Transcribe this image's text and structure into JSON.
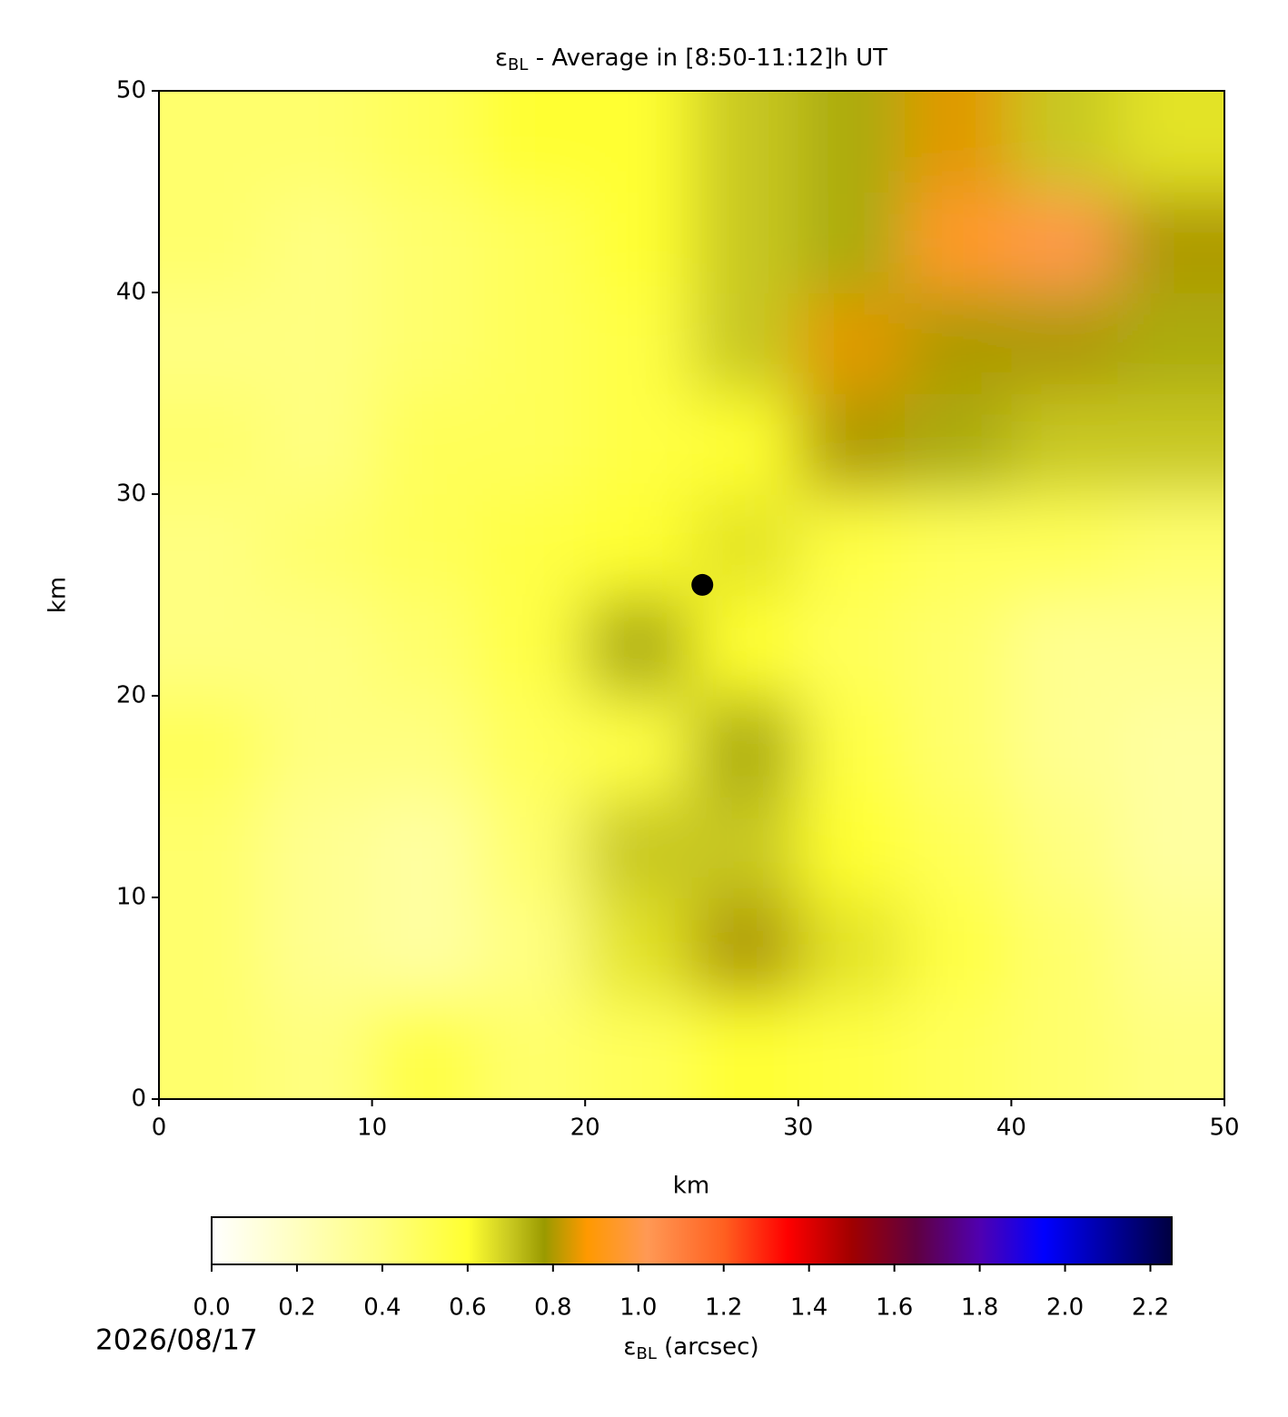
{
  "chart_data": {
    "type": "heatmap",
    "title": {
      "symbol": "ε",
      "subscript": "BL",
      "text": " - Average in [8:50-11:12]h UT"
    },
    "xlabel": "km",
    "ylabel": "km",
    "x": [
      2.5,
      7.5,
      12.5,
      17.5,
      22.5,
      27.5,
      32.5,
      37.5,
      42.5,
      47.5
    ],
    "y": [
      2.5,
      7.5,
      12.5,
      17.5,
      22.5,
      27.5,
      32.5,
      37.5,
      42.5,
      47.5
    ],
    "z": [
      [
        0.45,
        0.4,
        0.55,
        0.45,
        0.5,
        0.6,
        0.55,
        0.5,
        0.45,
        0.4
      ],
      [
        0.45,
        0.35,
        0.3,
        0.4,
        0.65,
        0.8,
        0.65,
        0.55,
        0.45,
        0.35
      ],
      [
        0.45,
        0.35,
        0.3,
        0.45,
        0.7,
        0.7,
        0.6,
        0.5,
        0.4,
        0.3
      ],
      [
        0.5,
        0.4,
        0.4,
        0.5,
        0.55,
        0.75,
        0.55,
        0.45,
        0.35,
        0.3
      ],
      [
        0.4,
        0.4,
        0.45,
        0.55,
        0.75,
        0.6,
        0.5,
        0.45,
        0.35,
        0.35
      ],
      [
        0.4,
        0.45,
        0.5,
        0.55,
        0.6,
        0.65,
        0.55,
        0.5,
        0.5,
        0.45
      ],
      [
        0.45,
        0.4,
        0.5,
        0.5,
        0.55,
        0.6,
        0.8,
        0.75,
        0.7,
        0.7
      ],
      [
        0.4,
        0.4,
        0.45,
        0.5,
        0.55,
        0.7,
        0.85,
        0.8,
        0.8,
        0.75
      ],
      [
        0.45,
        0.4,
        0.45,
        0.5,
        0.6,
        0.7,
        0.75,
        0.95,
        1.0,
        0.8
      ],
      [
        0.45,
        0.45,
        0.5,
        0.6,
        0.6,
        0.7,
        0.75,
        0.85,
        0.7,
        0.65
      ]
    ],
    "xlim": [
      0,
      50
    ],
    "ylim": [
      0,
      50
    ],
    "xticks": [
      0,
      10,
      20,
      30,
      40,
      50
    ],
    "yticks": [
      0,
      10,
      20,
      30,
      40,
      50
    ],
    "points": {
      "x": [
        25.5
      ],
      "y": [
        25.5
      ],
      "color": "#000000"
    },
    "colorbar": {
      "label": {
        "symbol": "ε",
        "subscript": "BL",
        "text": " (arcsec)"
      },
      "lim": [
        0,
        2.25
      ],
      "ticks": [
        {
          "value": 0,
          "label": "0.0"
        },
        0.2,
        0.4,
        0.6,
        0.8,
        {
          "value": 1,
          "label": "1.0"
        },
        1.2,
        1.4,
        1.6,
        1.8,
        {
          "value": 2,
          "label": "2.0"
        },
        2.2
      ],
      "colorscale": [
        [
          0,
          "#ffffff"
        ],
        [
          0.2,
          "#ffffc0"
        ],
        [
          0.4,
          "#ffff80"
        ],
        [
          0.6,
          "#ffff30"
        ],
        [
          0.7,
          "#c8c820"
        ],
        [
          0.78,
          "#9a9a00"
        ],
        [
          0.88,
          "#ff9900"
        ],
        [
          1.02,
          "#ff9955"
        ],
        [
          1.2,
          "#ff6020"
        ],
        [
          1.35,
          "#ff0000"
        ],
        [
          1.5,
          "#a00000"
        ],
        [
          1.65,
          "#600040"
        ],
        [
          1.8,
          "#5000b0"
        ],
        [
          1.95,
          "#0000ff"
        ],
        [
          2.25,
          "#000040"
        ]
      ]
    },
    "date": "2026/08/17"
  }
}
